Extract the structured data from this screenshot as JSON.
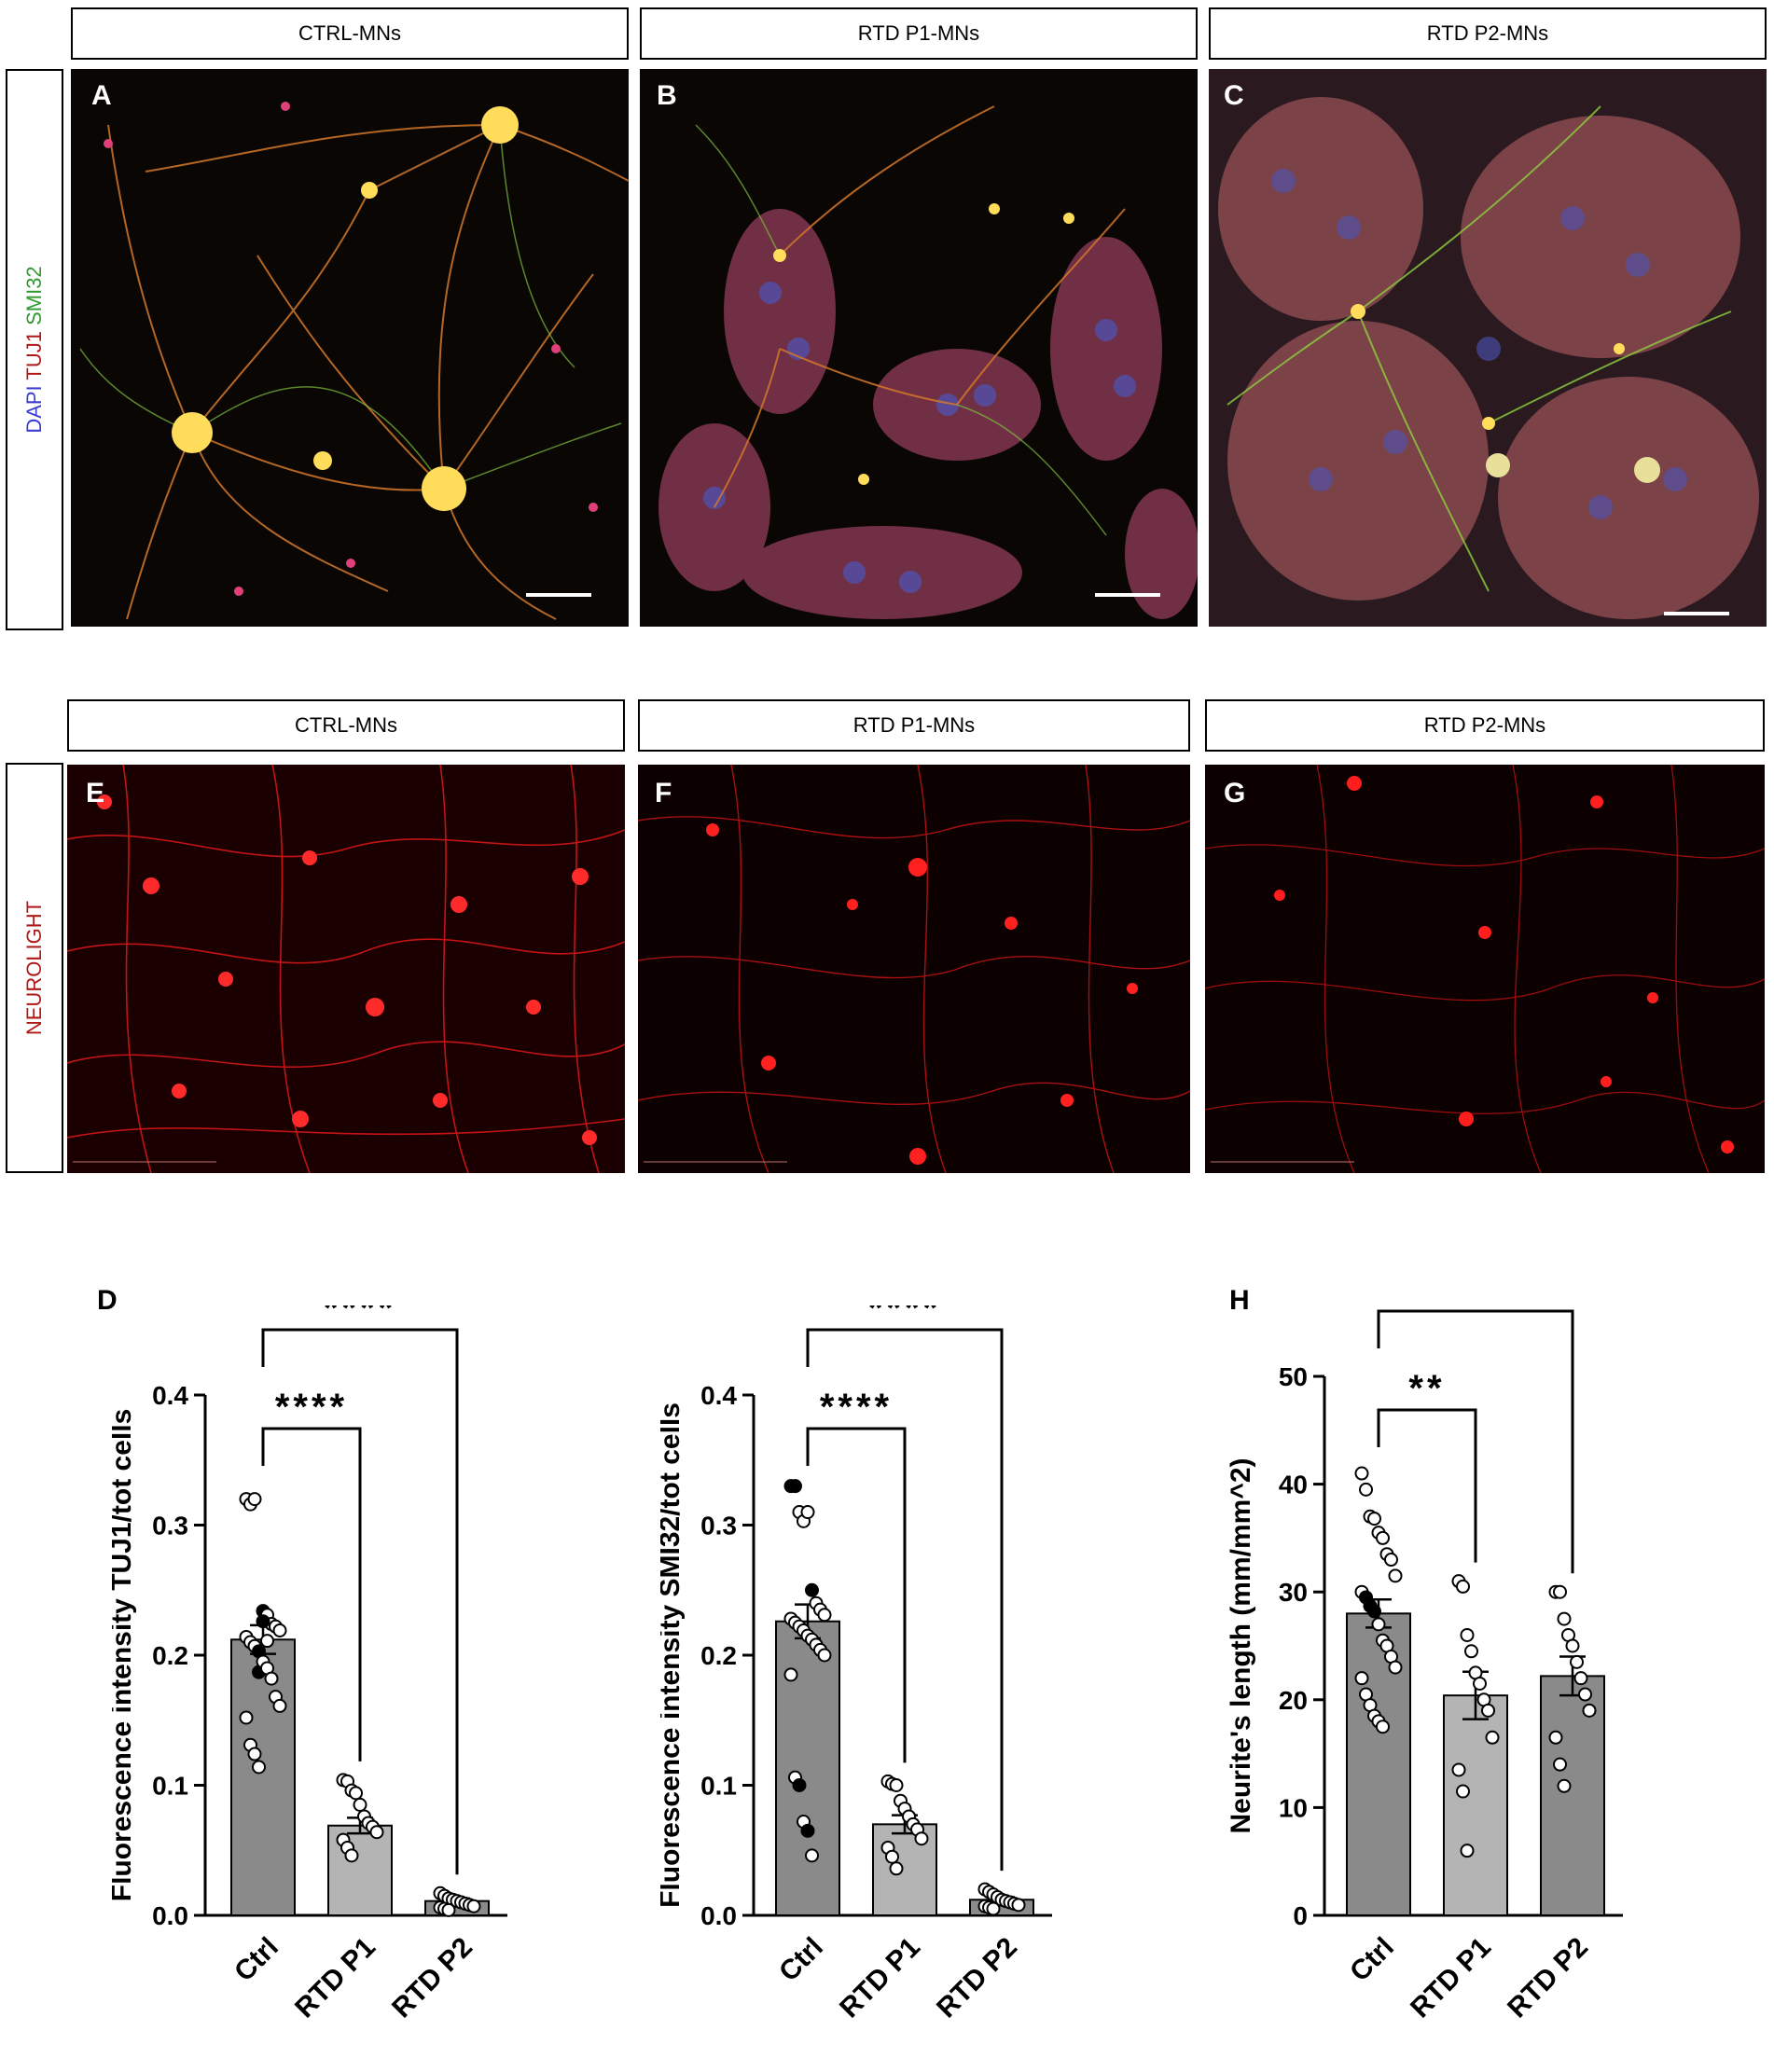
{
  "top_row": {
    "headers": [
      "CTRL-MNs",
      "RTD P1-MNs",
      "RTD P2-MNs"
    ],
    "side_label": {
      "parts": [
        "DAPI",
        "TUJ1",
        "SMI32"
      ],
      "colors": [
        "#3b3bd6",
        "#b01818",
        "#2f9a2f"
      ]
    },
    "panel_letters": [
      "A",
      "B",
      "C"
    ]
  },
  "bottom_row": {
    "headers": [
      "CTRL-MNs",
      "RTD P1-MNs",
      "RTD P2-MNs"
    ],
    "side_label": {
      "text": "NEUROLIGHT",
      "color": "#b01818"
    },
    "panel_letters": [
      "E",
      "F",
      "G"
    ]
  },
  "chart_data": [
    {
      "panel": "D",
      "type": "bar",
      "categories": [
        "Ctrl",
        "RTD P1",
        "RTD P2"
      ],
      "values": [
        0.212,
        0.069,
        0.011
      ],
      "sem": [
        0.011,
        0.006,
        0.002
      ],
      "points": [
        [
          0.32,
          0.316,
          0.32,
          0.187,
          0.234,
          0.231,
          0.224,
          0.222,
          0.219,
          0.214,
          0.21,
          0.207,
          0.203,
          0.195,
          0.19,
          0.182,
          0.168,
          0.161,
          0.152,
          0.131,
          0.124,
          0.114,
          0.226,
          0.211
        ],
        [
          0.104,
          0.103,
          0.096,
          0.094,
          0.085,
          0.076,
          0.071,
          0.068,
          0.064,
          0.058,
          0.052,
          0.046
        ],
        [
          0.017,
          0.015,
          0.013,
          0.012,
          0.011,
          0.01,
          0.009,
          0.008,
          0.007,
          0.006,
          0.005,
          0.004
        ]
      ],
      "filled_points": [
        [
          3,
          4,
          12,
          22
        ],
        [],
        []
      ],
      "ylabel": "Fluorescence intensity  TUJ1/tot cells",
      "yticks": [
        "0.0",
        "0.1",
        "0.2",
        "0.3",
        "0.4"
      ],
      "ylim": [
        0,
        0.4
      ],
      "significance": [
        {
          "from": 0,
          "to": 1,
          "label": "****"
        },
        {
          "from": 0,
          "to": 2,
          "label": "****"
        }
      ],
      "bar_colors": [
        "#8a8a8a",
        "#b4b4b4",
        "#8a8a8a"
      ]
    },
    {
      "panel": "",
      "type": "bar",
      "categories": [
        "Ctrl",
        "RTD P1",
        "RTD P2"
      ],
      "values": [
        0.226,
        0.07,
        0.012
      ],
      "sem": [
        0.013,
        0.007,
        0.002
      ],
      "points": [
        [
          0.33,
          0.33,
          0.31,
          0.303,
          0.31,
          0.25,
          0.24,
          0.235,
          0.231,
          0.228,
          0.225,
          0.222,
          0.219,
          0.215,
          0.212,
          0.208,
          0.204,
          0.2,
          0.185,
          0.106,
          0.1,
          0.072,
          0.065,
          0.046
        ],
        [
          0.103,
          0.101,
          0.1,
          0.088,
          0.082,
          0.076,
          0.07,
          0.066,
          0.059,
          0.052,
          0.045,
          0.036
        ],
        [
          0.02,
          0.018,
          0.016,
          0.014,
          0.012,
          0.011,
          0.01,
          0.009,
          0.008,
          0.007,
          0.006,
          0.005
        ]
      ],
      "filled_points": [
        [
          0,
          1,
          5,
          20,
          22
        ],
        [],
        []
      ],
      "ylabel": "Fluorescence intensity SMI32/tot cells",
      "yticks": [
        "0.0",
        "0.1",
        "0.2",
        "0.3",
        "0.4"
      ],
      "ylim": [
        0,
        0.4
      ],
      "significance": [
        {
          "from": 0,
          "to": 1,
          "label": "****"
        },
        {
          "from": 0,
          "to": 2,
          "label": "****"
        }
      ],
      "bar_colors": [
        "#8a8a8a",
        "#b4b4b4",
        "#8a8a8a"
      ]
    },
    {
      "panel": "H",
      "type": "bar",
      "categories": [
        "Ctrl",
        "RTD P1",
        "RTD P2"
      ],
      "values": [
        28.0,
        20.4,
        22.2
      ],
      "sem": [
        1.3,
        2.2,
        1.8
      ],
      "points": [
        [
          41.0,
          39.5,
          37.0,
          36.8,
          35.5,
          35.0,
          33.5,
          33.0,
          31.5,
          30.0,
          29.5,
          28.7,
          28.2,
          27.0,
          25.5,
          25.0,
          24.0,
          23.0,
          22.0,
          20.5,
          19.5,
          18.5,
          18.0,
          17.5
        ],
        [
          31.0,
          30.5,
          26.0,
          24.5,
          22.5,
          21.5,
          20.0,
          19.0,
          16.5,
          13.5,
          11.5,
          6.0
        ],
        [
          30.0,
          30.0,
          27.5,
          26.0,
          25.0,
          23.5,
          22.0,
          20.5,
          19.0,
          16.5,
          14.0,
          12.0
        ]
      ],
      "filled_points": [
        [
          10,
          11,
          12
        ],
        [],
        []
      ],
      "ylabel": "Neurite's length (mm/mm^2)",
      "yticks": [
        "0",
        "10",
        "20",
        "30",
        "40",
        "50"
      ],
      "ylim": [
        0,
        50
      ],
      "significance": [
        {
          "from": 0,
          "to": 1,
          "label": "**"
        },
        {
          "from": 0,
          "to": 2,
          "label": "*"
        }
      ],
      "bar_colors": [
        "#8a8a8a",
        "#b4b4b4",
        "#8a8a8a"
      ]
    }
  ]
}
